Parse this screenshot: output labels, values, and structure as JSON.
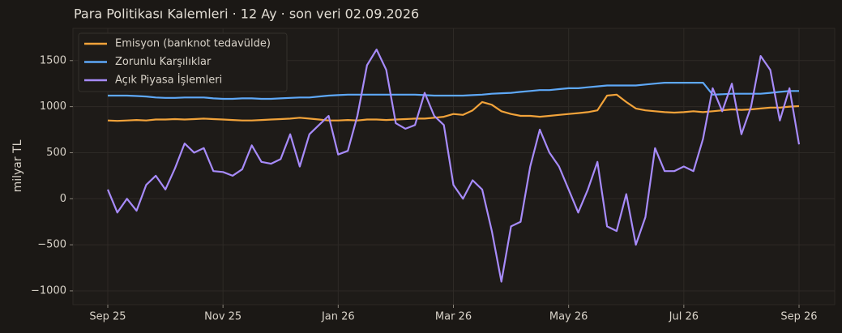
{
  "chart_data": {
    "type": "line",
    "title": "Para Politikası Kalemleri · 12 Ay · son veri 02.09.2026",
    "y_label": "milyar TL",
    "categories": [
      "Sep 25",
      null,
      null,
      null,
      null,
      null,
      null,
      null,
      null,
      null,
      null,
      null,
      "Nov 25",
      null,
      null,
      null,
      null,
      null,
      null,
      null,
      null,
      null,
      null,
      null,
      "Jan 26",
      null,
      null,
      null,
      null,
      null,
      null,
      null,
      null,
      null,
      null,
      null,
      "Mar 26",
      null,
      null,
      null,
      null,
      null,
      null,
      null,
      null,
      null,
      null,
      null,
      "May 26",
      null,
      null,
      null,
      null,
      null,
      null,
      null,
      null,
      null,
      null,
      null,
      "Jul 26",
      null,
      null,
      null,
      null,
      null,
      null,
      null,
      null,
      null,
      null,
      null,
      "Sep 26"
    ],
    "series": [
      {
        "name": "Emisyon (banknot tedavülde)",
        "color": "#f2a33a",
        "values": [
          850,
          845,
          850,
          855,
          850,
          860,
          860,
          865,
          860,
          865,
          870,
          865,
          860,
          855,
          850,
          850,
          855,
          860,
          865,
          870,
          880,
          870,
          860,
          850,
          850,
          855,
          850,
          860,
          860,
          855,
          860,
          865,
          870,
          870,
          880,
          890,
          920,
          910,
          960,
          1050,
          1020,
          950,
          920,
          900,
          900,
          890,
          900,
          910,
          920,
          930,
          940,
          960,
          1120,
          1130,
          1050,
          980,
          960,
          950,
          940,
          935,
          940,
          950,
          940,
          950,
          960,
          970,
          965,
          970,
          980,
          990,
          990,
          1000,
          1005
        ]
      },
      {
        "name": "Zorunlu Karşılıklar",
        "color": "#5ea8f7",
        "values": [
          1120,
          1120,
          1120,
          1115,
          1110,
          1100,
          1095,
          1095,
          1100,
          1100,
          1100,
          1090,
          1085,
          1085,
          1090,
          1090,
          1085,
          1085,
          1090,
          1095,
          1100,
          1100,
          1110,
          1120,
          1125,
          1130,
          1130,
          1130,
          1130,
          1130,
          1130,
          1130,
          1130,
          1125,
          1120,
          1120,
          1120,
          1120,
          1125,
          1130,
          1140,
          1145,
          1150,
          1160,
          1170,
          1180,
          1180,
          1190,
          1200,
          1200,
          1210,
          1220,
          1230,
          1230,
          1230,
          1230,
          1240,
          1250,
          1260,
          1260,
          1260,
          1260,
          1260,
          1130,
          1135,
          1140,
          1140,
          1140,
          1140,
          1150,
          1160,
          1170,
          1170
        ]
      },
      {
        "name": "Açık Piyasa İşlemleri",
        "color": "#a78bfa",
        "values": [
          100,
          -150,
          0,
          -130,
          150,
          250,
          100,
          330,
          600,
          500,
          550,
          300,
          290,
          250,
          320,
          580,
          400,
          380,
          430,
          700,
          350,
          700,
          800,
          900,
          480,
          520,
          900,
          1450,
          1620,
          1400,
          820,
          760,
          800,
          1150,
          900,
          800,
          150,
          0,
          200,
          100,
          -350,
          -900,
          -300,
          -250,
          350,
          750,
          500,
          350,
          100,
          -150,
          100,
          400,
          -300,
          -350,
          50,
          -500,
          -200,
          550,
          300,
          300,
          350,
          300,
          650,
          1200,
          950,
          1250,
          700,
          1000,
          1550,
          1400,
          850,
          1200,
          590
        ]
      }
    ],
    "ylim": [
      -1150,
      1850
    ],
    "yticks": [
      {
        "value": -1000,
        "label": "−1000"
      },
      {
        "value": -500,
        "label": "−500"
      },
      0,
      500,
      1000,
      1500
    ],
    "grid": true,
    "legend": "upper left"
  }
}
